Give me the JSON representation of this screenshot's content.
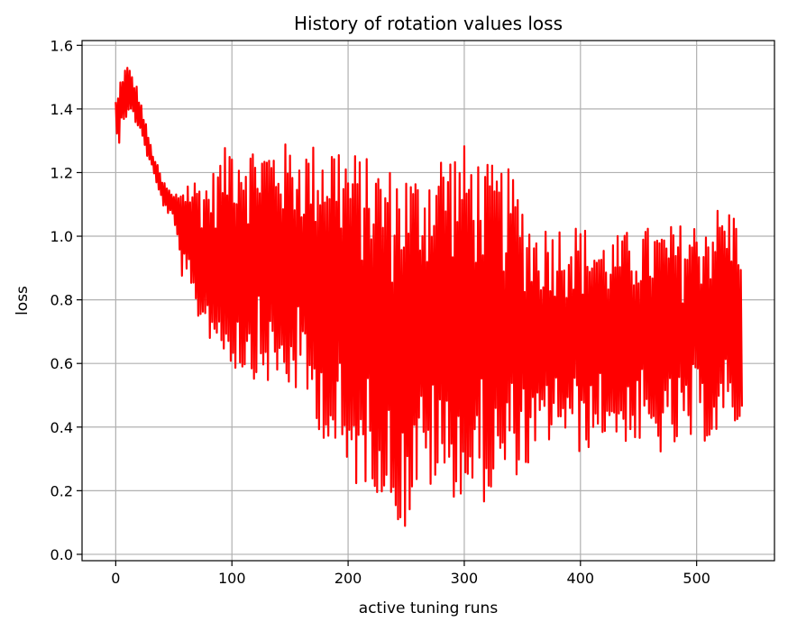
{
  "chart_data": {
    "type": "line",
    "title": "History of rotation values loss",
    "xlabel": "active tuning runs",
    "ylabel": "loss",
    "xlim": [
      -29,
      567
    ],
    "ylim": [
      -0.02,
      1.615
    ],
    "xticks": [
      0,
      100,
      200,
      300,
      400,
      500
    ],
    "yticks": [
      0.0,
      0.2,
      0.4,
      0.6,
      0.8,
      1.0,
      1.2,
      1.4,
      1.6
    ],
    "grid": true,
    "legend": "none",
    "series": [
      {
        "color": "#ff0000",
        "n_points": 540,
        "envelope": {
          "x": [
            0,
            2,
            5,
            10,
            15,
            20,
            25,
            30,
            40,
            50,
            60,
            80,
            100,
            120,
            140,
            160,
            190,
            200,
            220,
            237,
            250,
            260,
            280,
            300,
            320,
            340,
            360,
            380,
            400,
            420,
            450,
            470,
            500,
            520,
            539
          ],
          "upper": [
            1.43,
            1.45,
            1.52,
            1.54,
            1.51,
            1.45,
            1.37,
            1.29,
            1.18,
            1.13,
            1.19,
            1.18,
            1.32,
            1.29,
            1.3,
            1.28,
            1.32,
            1.28,
            1.24,
            1.22,
            1.22,
            1.2,
            1.28,
            1.29,
            1.23,
            1.21,
            1.04,
            1.04,
            1.04,
            0.99,
            1.03,
            1.03,
            1.05,
            1.1,
            1.08
          ],
          "lower": [
            1.33,
            1.26,
            1.36,
            1.37,
            1.36,
            1.34,
            1.27,
            1.22,
            1.1,
            1.04,
            0.8,
            0.68,
            0.58,
            0.55,
            0.52,
            0.5,
            0.28,
            0.2,
            0.22,
            0.13,
            0.06,
            0.21,
            0.19,
            0.17,
            0.16,
            0.24,
            0.27,
            0.39,
            0.31,
            0.37,
            0.34,
            0.31,
            0.35,
            0.36,
            0.41
          ]
        }
      }
    ]
  }
}
